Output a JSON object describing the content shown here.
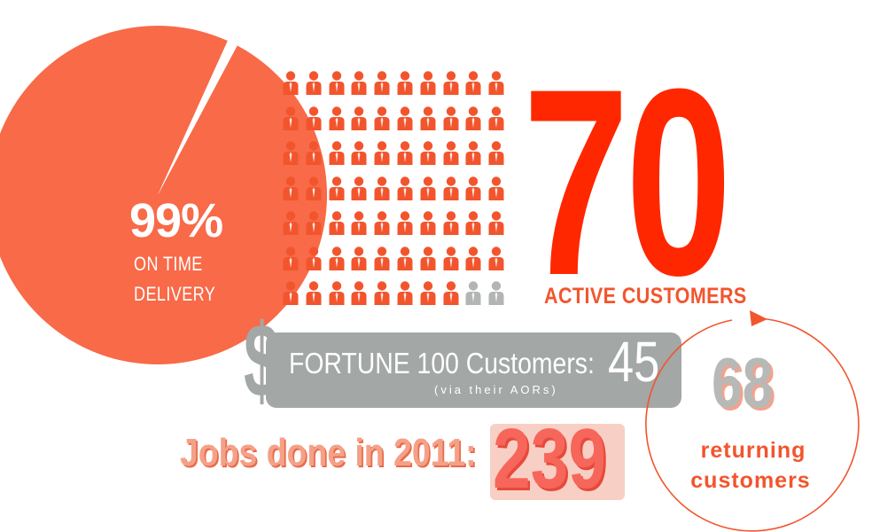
{
  "chart_data": [
    {
      "type": "pie",
      "values": [
        99,
        1
      ],
      "value_label": "99%",
      "caption_lines": [
        "ON TIME",
        "DELIVERY"
      ],
      "colors": [
        "#f86a48",
        "#ffffff"
      ]
    },
    {
      "type": "pictograph",
      "grid": {
        "rows": 7,
        "cols": 10
      },
      "total": 70,
      "highlighted": 68,
      "highlight_color": "#f2552d",
      "other_color": "#b3b5b4"
    }
  ],
  "stats": {
    "active": {
      "value": "70",
      "label": "ACTIVE CUSTOMERS",
      "color": "#ff2700"
    },
    "fortune": {
      "symbol": "$",
      "label": "FORTUNE 100 Customers:",
      "sub": "(via their AORs)",
      "value": "45",
      "color": "#a3a7a6"
    },
    "jobs": {
      "label": "Jobs done in 2011:",
      "value": "239"
    },
    "returning": {
      "value": "68",
      "line1": "returning",
      "line2": "customers",
      "color": "#f2552d"
    }
  }
}
